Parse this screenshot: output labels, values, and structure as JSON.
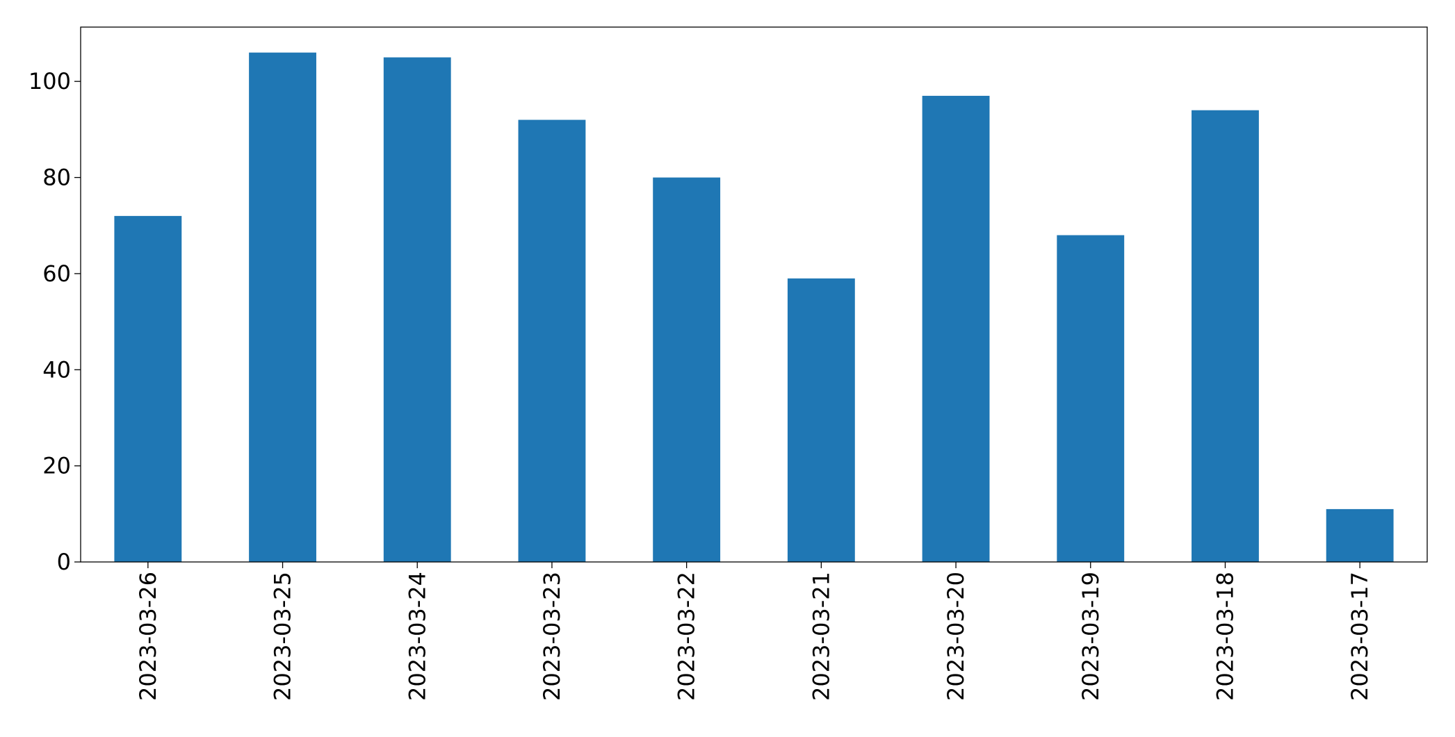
{
  "chart_data": {
    "type": "bar",
    "categories": [
      "2023-03-26",
      "2023-03-25",
      "2023-03-24",
      "2023-03-23",
      "2023-03-22",
      "2023-03-21",
      "2023-03-20",
      "2023-03-19",
      "2023-03-18",
      "2023-03-17"
    ],
    "values": [
      72,
      106,
      105,
      92,
      80,
      59,
      97,
      68,
      94,
      11
    ],
    "color": "#1f77b4",
    "ylim": [
      0,
      111.3
    ],
    "yticks": [
      0,
      20,
      40,
      60,
      80,
      100
    ],
    "grid": false
  }
}
